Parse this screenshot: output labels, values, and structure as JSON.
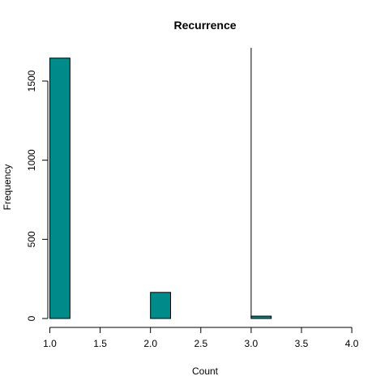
{
  "chart_data": {
    "type": "bar",
    "title": "Recurrence",
    "xlabel": "Count",
    "ylabel": "Frequency",
    "bar_color": "#008b8b",
    "bins": [
      {
        "x0": 1.0,
        "x1": 1.2,
        "value": 1645
      },
      {
        "x0": 1.2,
        "x1": 1.4,
        "value": 0
      },
      {
        "x0": 1.4,
        "x1": 1.6,
        "value": 0
      },
      {
        "x0": 1.6,
        "x1": 1.8,
        "value": 0
      },
      {
        "x0": 1.8,
        "x1": 2.0,
        "value": 0
      },
      {
        "x0": 2.0,
        "x1": 2.2,
        "value": 165
      },
      {
        "x0": 2.2,
        "x1": 2.4,
        "value": 0
      },
      {
        "x0": 2.4,
        "x1": 2.6,
        "value": 0
      },
      {
        "x0": 2.6,
        "x1": 2.8,
        "value": 0
      },
      {
        "x0": 2.8,
        "x1": 3.0,
        "value": 0
      },
      {
        "x0": 3.0,
        "x1": 3.2,
        "value": 15
      }
    ],
    "vline_x": 3.0,
    "xlim": [
      0.98,
      4.12
    ],
    "ylim": [
      0,
      1710
    ],
    "x_ticks": [
      1.0,
      1.5,
      2.0,
      2.5,
      3.0,
      3.5,
      4.0
    ],
    "x_tick_labels": [
      "1.0",
      "1.5",
      "2.0",
      "2.5",
      "3.0",
      "3.5",
      "4.0"
    ],
    "y_ticks": [
      0,
      500,
      1000,
      1500
    ],
    "y_tick_labels": [
      "0",
      "500",
      "1000",
      "1500"
    ],
    "grid": false
  }
}
